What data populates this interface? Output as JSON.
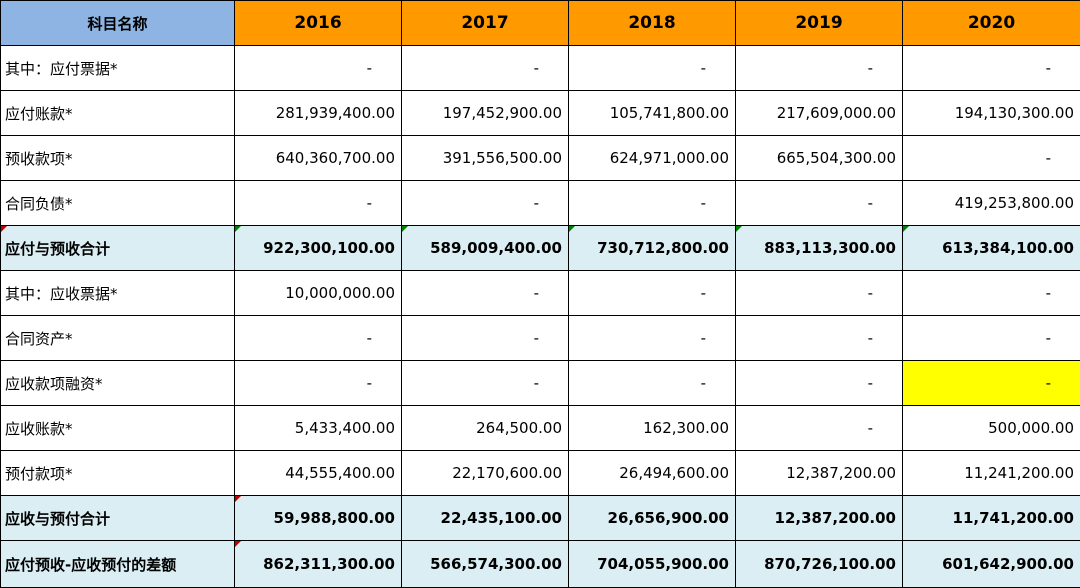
{
  "header": {
    "label": "科目名称",
    "years": [
      "2016",
      "2017",
      "2018",
      "2019",
      "2020"
    ]
  },
  "rows": [
    {
      "label": "其中：应付票据*",
      "values": [
        "-",
        "-",
        "-",
        "-",
        "-"
      ]
    },
    {
      "label": "应付账款*",
      "values": [
        "281,939,400.00",
        "197,452,900.00",
        "105,741,800.00",
        "217,609,000.00",
        "194,130,300.00"
      ]
    },
    {
      "label": "预收款项*",
      "values": [
        "640,360,700.00",
        "391,556,500.00",
        "624,971,000.00",
        "665,504,300.00",
        "-"
      ]
    },
    {
      "label": "合同负债*",
      "values": [
        "-",
        "-",
        "-",
        "-",
        "419,253,800.00"
      ]
    },
    {
      "label": "应付与预收合计",
      "values": [
        "922,300,100.00",
        "589,009,400.00",
        "730,712,800.00",
        "883,113,300.00",
        "613,384,100.00"
      ]
    },
    {
      "label": "其中：应收票据*",
      "values": [
        "10,000,000.00",
        "-",
        "-",
        "-",
        "-"
      ]
    },
    {
      "label": "合同资产*",
      "values": [
        "-",
        "-",
        "-",
        "-",
        "-"
      ]
    },
    {
      "label": "应收款项融资*",
      "values": [
        "-",
        "-",
        "-",
        "-",
        "-"
      ]
    },
    {
      "label": "应收账款*",
      "values": [
        "5,433,400.00",
        "264,500.00",
        "162,300.00",
        "-",
        "500,000.00"
      ]
    },
    {
      "label": "预付款项*",
      "values": [
        "44,555,400.00",
        "22,170,600.00",
        "26,494,600.00",
        "12,387,200.00",
        "11,241,200.00"
      ]
    },
    {
      "label": "应收与预付合计",
      "values": [
        "59,988,800.00",
        "22,435,100.00",
        "26,656,900.00",
        "12,387,200.00",
        "11,741,200.00"
      ]
    },
    {
      "label": "应付预收-应收预付的差额",
      "values": [
        "862,311,300.00",
        "566,574,300.00",
        "704,055,900.00",
        "870,726,100.00",
        "601,642,900.00"
      ]
    }
  ],
  "colors": {
    "label_header": "#8db4e2",
    "year_header": "#ff9900",
    "total_row": "#daeef3",
    "highlight": "#ffff00"
  }
}
